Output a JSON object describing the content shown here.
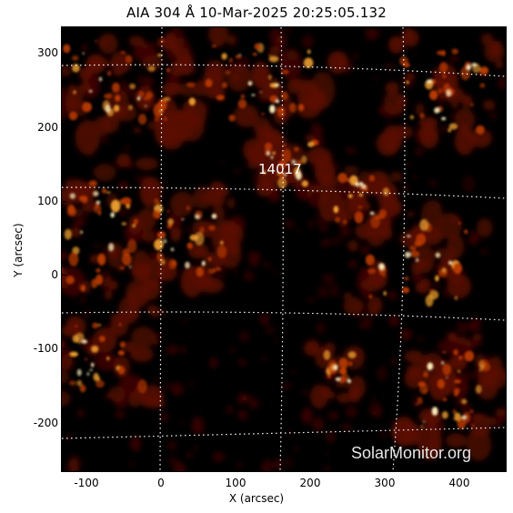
{
  "title": "AIA 304 Å 10-Mar-2025 20:25:05.132",
  "region_label": "14017",
  "watermark": "SolarMonitor.org",
  "axes": {
    "xlabel": "X (arcsec)",
    "ylabel": "Y (arcsec)",
    "x_ticks": [
      "-100",
      "0",
      "100",
      "200",
      "300",
      "400"
    ],
    "y_ticks": [
      "300",
      "200",
      "100",
      "0",
      "-100",
      "-200"
    ]
  },
  "image": {
    "colormap": "sdoaia304",
    "colors": {
      "dark": "#000000",
      "low": "#5a0a00",
      "mid": "#b83a06",
      "high": "#f0a030",
      "peak": "#fff2c0"
    }
  }
}
